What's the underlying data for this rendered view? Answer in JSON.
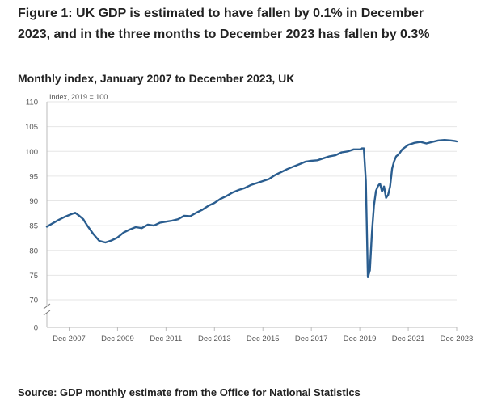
{
  "title": "Figure 1: UK GDP is estimated to have fallen by 0.1% in December 2023, and in the three months to December 2023 has fallen by 0.3%",
  "subtitle": "Monthly index, January 2007 to December 2023, UK",
  "source": "Source: GDP monthly estimate from the Office for National Statistics",
  "colors": {
    "line": "#2a5d8f",
    "grid": "#e6e6e6",
    "axis": "#bbbbbb"
  },
  "chart_data": {
    "type": "line",
    "title": "",
    "ylabel": "Index, 2019 = 100",
    "xlabel": "",
    "ylim": [
      0,
      110
    ],
    "y_axis_break": [
      0,
      70
    ],
    "y_ticks": [
      0,
      70,
      75,
      80,
      85,
      90,
      95,
      100,
      105,
      110
    ],
    "x_ticks": [
      "Dec 2007",
      "Dec 2009",
      "Dec 2011",
      "Dec 2013",
      "Dec 2015",
      "Dec 2017",
      "Dec 2019",
      "Dec 2021",
      "Dec 2023"
    ],
    "grid": true,
    "legend": "none",
    "x_range": [
      "2007-01",
      "2023-12"
    ],
    "series": [
      {
        "points": [
          [
            "2007-01",
            84.8
          ],
          [
            "2007-04",
            85.5
          ],
          [
            "2007-07",
            86.2
          ],
          [
            "2007-10",
            86.8
          ],
          [
            "2008-01",
            87.3
          ],
          [
            "2008-03",
            87.6
          ],
          [
            "2008-05",
            87.0
          ],
          [
            "2008-07",
            86.3
          ],
          [
            "2008-09",
            85.0
          ],
          [
            "2008-12",
            83.3
          ],
          [
            "2009-03",
            81.9
          ],
          [
            "2009-06",
            81.6
          ],
          [
            "2009-09",
            82.0
          ],
          [
            "2009-12",
            82.6
          ],
          [
            "2010-03",
            83.6
          ],
          [
            "2010-06",
            84.2
          ],
          [
            "2010-09",
            84.7
          ],
          [
            "2010-12",
            84.5
          ],
          [
            "2011-03",
            85.2
          ],
          [
            "2011-06",
            85.0
          ],
          [
            "2011-09",
            85.6
          ],
          [
            "2011-12",
            85.8
          ],
          [
            "2012-03",
            86.0
          ],
          [
            "2012-06",
            86.3
          ],
          [
            "2012-09",
            87.0
          ],
          [
            "2012-12",
            86.9
          ],
          [
            "2013-03",
            87.6
          ],
          [
            "2013-06",
            88.2
          ],
          [
            "2013-09",
            89.0
          ],
          [
            "2013-12",
            89.6
          ],
          [
            "2014-03",
            90.4
          ],
          [
            "2014-06",
            91.0
          ],
          [
            "2014-09",
            91.7
          ],
          [
            "2014-12",
            92.2
          ],
          [
            "2015-03",
            92.6
          ],
          [
            "2015-06",
            93.2
          ],
          [
            "2015-09",
            93.6
          ],
          [
            "2015-12",
            94.0
          ],
          [
            "2016-03",
            94.4
          ],
          [
            "2016-06",
            95.2
          ],
          [
            "2016-09",
            95.8
          ],
          [
            "2016-12",
            96.4
          ],
          [
            "2017-03",
            96.9
          ],
          [
            "2017-06",
            97.4
          ],
          [
            "2017-09",
            97.9
          ],
          [
            "2017-12",
            98.1
          ],
          [
            "2018-03",
            98.2
          ],
          [
            "2018-06",
            98.6
          ],
          [
            "2018-09",
            99.0
          ],
          [
            "2018-12",
            99.2
          ],
          [
            "2019-03",
            99.8
          ],
          [
            "2019-06",
            100.0
          ],
          [
            "2019-09",
            100.4
          ],
          [
            "2019-12",
            100.4
          ],
          [
            "2020-01",
            100.6
          ],
          [
            "2020-02",
            100.6
          ],
          [
            "2020-03",
            94.0
          ],
          [
            "2020-04",
            74.6
          ],
          [
            "2020-05",
            76.0
          ],
          [
            "2020-06",
            83.5
          ],
          [
            "2020-07",
            89.0
          ],
          [
            "2020-08",
            92.0
          ],
          [
            "2020-09",
            93.0
          ],
          [
            "2020-10",
            93.5
          ],
          [
            "2020-11",
            91.9
          ],
          [
            "2020-12",
            92.9
          ],
          [
            "2021-01",
            90.6
          ],
          [
            "2021-02",
            91.2
          ],
          [
            "2021-03",
            92.9
          ],
          [
            "2021-04",
            96.5
          ],
          [
            "2021-05",
            98.0
          ],
          [
            "2021-06",
            99.0
          ],
          [
            "2021-07",
            99.3
          ],
          [
            "2021-08",
            99.8
          ],
          [
            "2021-09",
            100.4
          ],
          [
            "2021-12",
            101.3
          ],
          [
            "2022-03",
            101.7
          ],
          [
            "2022-06",
            101.9
          ],
          [
            "2022-09",
            101.6
          ],
          [
            "2022-12",
            101.9
          ],
          [
            "2023-03",
            102.2
          ],
          [
            "2023-06",
            102.3
          ],
          [
            "2023-09",
            102.2
          ],
          [
            "2023-11",
            102.1
          ],
          [
            "2023-12",
            102.0
          ]
        ]
      }
    ]
  }
}
